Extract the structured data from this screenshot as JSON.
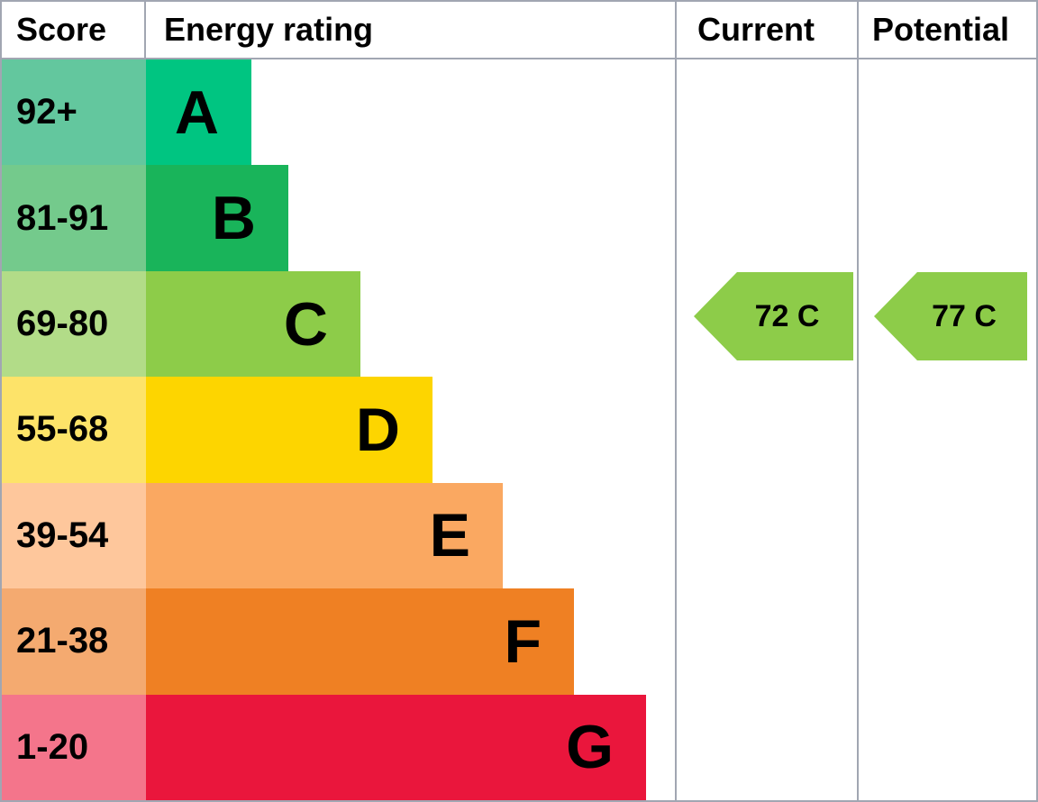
{
  "header": {
    "score_label": "Score",
    "rating_label": "Energy rating",
    "current_label": "Current",
    "potential_label": "Potential"
  },
  "chart_data": {
    "type": "bar",
    "chart_kind": "epc-energy-rating",
    "title": "Energy rating",
    "legend_position": "none",
    "grid": "off",
    "bands": [
      {
        "letter": "A",
        "score_range": "92+",
        "bar_color": "#00c581",
        "score_cell_color": "#63c79e"
      },
      {
        "letter": "B",
        "score_range": "81-91",
        "bar_color": "#19b45a",
        "score_cell_color": "#74ca8c"
      },
      {
        "letter": "C",
        "score_range": "69-80",
        "bar_color": "#8dcc49",
        "score_cell_color": "#b2dc88"
      },
      {
        "letter": "D",
        "score_range": "55-68",
        "bar_color": "#fdd500",
        "score_cell_color": "#fde369"
      },
      {
        "letter": "E",
        "score_range": "39-54",
        "bar_color": "#faa861",
        "score_cell_color": "#fec79c"
      },
      {
        "letter": "F",
        "score_range": "21-38",
        "bar_color": "#ef8023",
        "score_cell_color": "#f4aa70"
      },
      {
        "letter": "G",
        "score_range": "1-20",
        "bar_color": "#ea163c",
        "score_cell_color": "#f4758b"
      }
    ],
    "current": {
      "score": 72,
      "band": "C",
      "label": "72 C",
      "arrow_color": "#8dcc49"
    },
    "potential": {
      "score": 77,
      "band": "C",
      "label": "77 C",
      "arrow_color": "#8dcc49"
    },
    "border_color": "#a1a6b2",
    "text_color": "#000000"
  }
}
